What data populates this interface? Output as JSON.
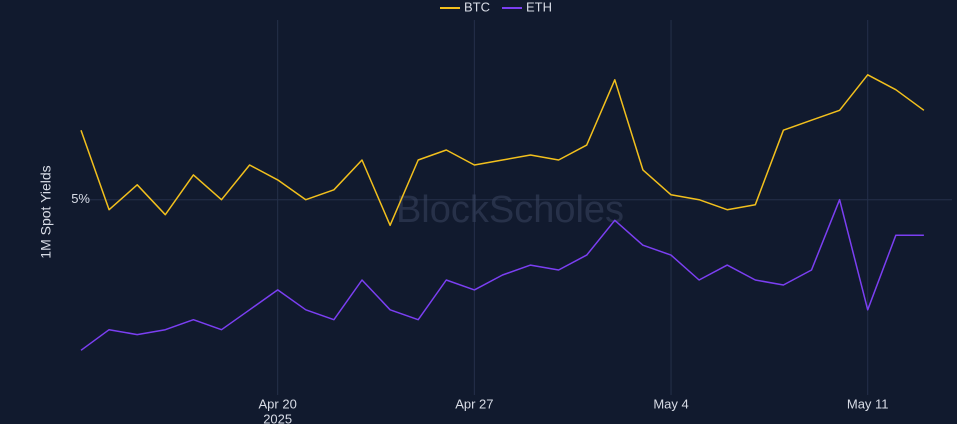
{
  "chart_data": {
    "type": "line",
    "y_label": "1M Spot Yields",
    "watermark": "BlockScholes",
    "x": [
      "2025-04-13",
      "2025-04-14",
      "2025-04-15",
      "2025-04-16",
      "2025-04-17",
      "2025-04-18",
      "2025-04-19",
      "2025-04-20",
      "2025-04-21",
      "2025-04-22",
      "2025-04-23",
      "2025-04-24",
      "2025-04-25",
      "2025-04-26",
      "2025-04-27",
      "2025-04-28",
      "2025-04-29",
      "2025-04-30",
      "2025-05-01",
      "2025-05-02",
      "2025-05-03",
      "2025-05-04",
      "2025-05-05",
      "2025-05-06",
      "2025-05-07",
      "2025-05-08",
      "2025-05-09",
      "2025-05-10",
      "2025-05-11",
      "2025-05-12",
      "2025-05-13"
    ],
    "series": [
      {
        "name": "BTC",
        "color": "#f2c01d",
        "values": [
          5.98,
          4.86,
          5.21,
          4.79,
          5.35,
          5.0,
          5.49,
          5.28,
          5.0,
          5.14,
          5.56,
          4.64,
          5.56,
          5.7,
          5.49,
          5.56,
          5.63,
          5.56,
          5.77,
          6.69,
          5.42,
          5.07,
          5.0,
          4.86,
          4.93,
          5.98,
          6.12,
          6.26,
          6.76,
          6.55,
          6.26
        ]
      },
      {
        "name": "ETH",
        "color": "#7b3ff2",
        "values": [
          2.88,
          3.17,
          3.1,
          3.17,
          3.31,
          3.17,
          3.45,
          3.73,
          3.45,
          3.31,
          3.87,
          3.45,
          3.31,
          3.87,
          3.73,
          3.94,
          4.08,
          4.01,
          4.22,
          4.71,
          4.36,
          4.22,
          3.87,
          4.08,
          3.87,
          3.8,
          4.01,
          5.0,
          3.45,
          4.5,
          4.5
        ]
      }
    ],
    "xlim": [
      "2025-04-13",
      "2025-05-14"
    ],
    "xticks": [
      {
        "value": "2025-04-20",
        "label": "Apr 20",
        "sublabel": "2025"
      },
      {
        "value": "2025-04-27",
        "label": "Apr 27"
      },
      {
        "value": "2025-05-04",
        "label": "May 4"
      },
      {
        "value": "2025-05-11",
        "label": "May 11"
      }
    ],
    "ylim": [
      2.25,
      7.25
    ],
    "yticks": [
      {
        "value": 5,
        "label": "5%"
      }
    ],
    "grid": true,
    "legend": "top"
  }
}
